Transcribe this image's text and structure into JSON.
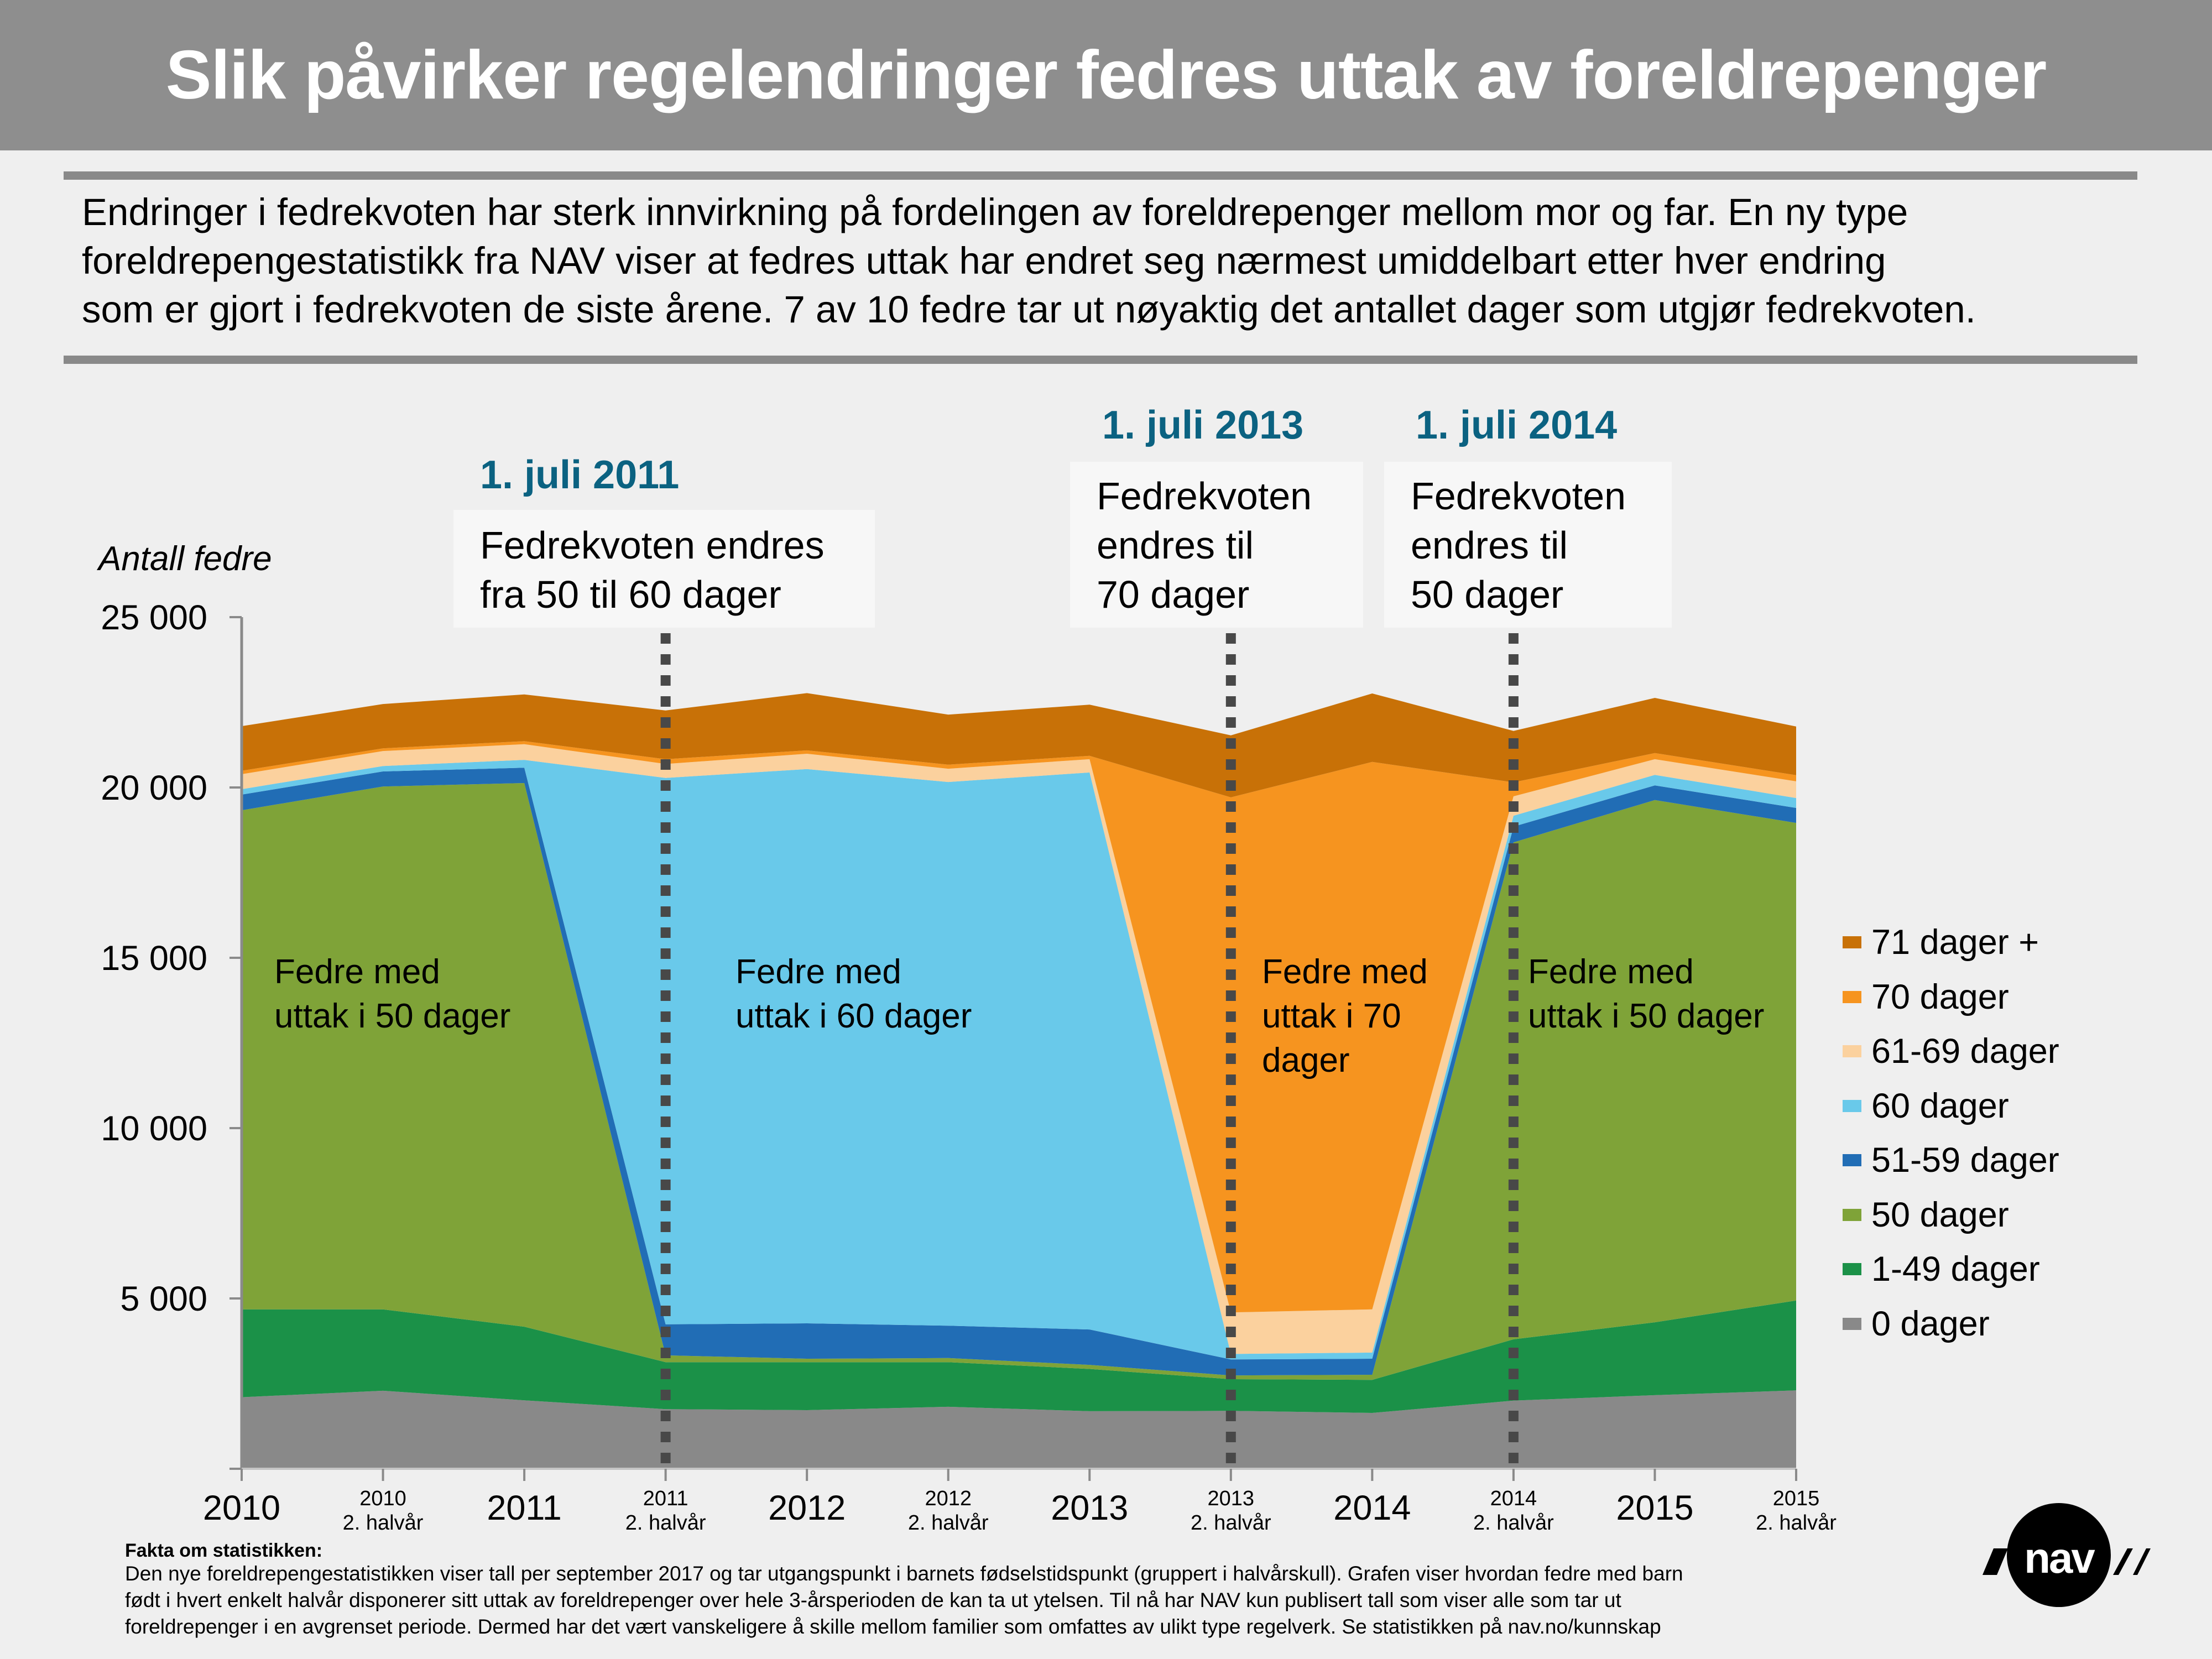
{
  "header": {
    "title": "Slik påvirker regelendringer fedres uttak av foreldrepenger"
  },
  "intro": {
    "lines": [
      "Endringer i fedrekvoten har sterk innvirkning på fordelingen av foreldrepenger mellom mor og far. En ny type",
      "foreldrepengestatistikk fra NAV viser at fedres uttak har endret seg nærmest umiddelbart etter hver endring",
      "som er gjort i fedrekvoten de siste årene. 7 av 10 fedre tar ut nøyaktig det antallet dager som utgjør fedrekvoten."
    ]
  },
  "annotations": [
    {
      "date": "1. juli 2011",
      "lines": [
        "Fedrekvoten endres",
        "fra 50 til 60 dager"
      ],
      "at_category": "2011 2. halvår"
    },
    {
      "date": "1. juli 2013",
      "lines": [
        "Fedrekvoten",
        "endres til",
        "70 dager"
      ],
      "at_category": "2013 2. halvår"
    },
    {
      "date": "1. juli 2014",
      "lines": [
        "Fedrekvoten",
        "endres til",
        "50 dager"
      ],
      "at_category": "2014 2. halvår"
    }
  ],
  "area_labels": [
    {
      "lines": [
        "Fedre med",
        "uttak i 50 dager"
      ]
    },
    {
      "lines": [
        "Fedre med",
        "uttak i 60 dager"
      ]
    },
    {
      "lines": [
        "Fedre med",
        "uttak i 70",
        "dager"
      ]
    },
    {
      "lines": [
        "Fedre med",
        "uttak i 50 dager"
      ]
    }
  ],
  "chart_data": {
    "type": "area",
    "stacked": true,
    "ylabel": "Antall fedre",
    "ylim": [
      0,
      25000
    ],
    "yticks": [
      5000,
      10000,
      15000,
      20000,
      25000
    ],
    "ytick_labels": [
      "5 000",
      "10 000",
      "15 000",
      "20 000",
      "25 000"
    ],
    "categories": [
      {
        "year": "2010",
        "half": ""
      },
      {
        "year": "2010",
        "half": "2. halvår"
      },
      {
        "year": "2011",
        "half": ""
      },
      {
        "year": "2011",
        "half": "2. halvår"
      },
      {
        "year": "2012",
        "half": ""
      },
      {
        "year": "2012",
        "half": "2. halvår"
      },
      {
        "year": "2013",
        "half": ""
      },
      {
        "year": "2013",
        "half": "2. halvår"
      },
      {
        "year": "2014",
        "half": ""
      },
      {
        "year": "2014",
        "half": "2. halvår"
      },
      {
        "year": "2015",
        "half": ""
      },
      {
        "year": "2015",
        "half": "2. halvår"
      }
    ],
    "series": [
      {
        "name": "0 dager",
        "color": "#898989",
        "values": [
          2100,
          2290,
          2010,
          1750,
          1720,
          1820,
          1690,
          1700,
          1640,
          2000,
          2160,
          2300
        ]
      },
      {
        "name": "1-49 dager",
        "color": "#1b9148",
        "values": [
          2580,
          2390,
          2160,
          1380,
          1410,
          1310,
          1240,
          930,
          970,
          1800,
          2140,
          2640
        ]
      },
      {
        "name": "50 dager",
        "color": "#7fa338",
        "values": [
          14650,
          15350,
          15960,
          200,
          100,
          120,
          120,
          110,
          150,
          14590,
          15330,
          14020
        ]
      },
      {
        "name": "51-59 dager",
        "color": "#216db5",
        "values": [
          460,
          440,
          450,
          910,
          1040,
          950,
          1040,
          470,
          470,
          460,
          430,
          440
        ]
      },
      {
        "name": "60 dager",
        "color": "#69c9ea",
        "values": [
          160,
          160,
          230,
          16040,
          16270,
          15960,
          16350,
          160,
          180,
          320,
          310,
          290
        ]
      },
      {
        "name": "61-69 dager",
        "color": "#fbd19e",
        "values": [
          440,
          440,
          460,
          410,
          450,
          390,
          390,
          1220,
          1270,
          570,
          460,
          490
        ]
      },
      {
        "name": "70 dager",
        "color": "#f6941f",
        "values": [
          100,
          80,
          90,
          140,
          100,
          120,
          100,
          15120,
          16070,
          410,
          180,
          180
        ]
      },
      {
        "name": "71 dager +",
        "color": "#c87107",
        "values": [
          1310,
          1300,
          1370,
          1430,
          1680,
          1470,
          1500,
          1820,
          2010,
          1510,
          1620,
          1430
        ]
      }
    ],
    "legend_position": "right",
    "grid": false
  },
  "footer": {
    "heading": "Fakta om statistikken:",
    "lines": [
      "Den nye foreldrepengestatistikken viser tall per september 2017 og tar utgangspunkt i barnets fødselstidspunkt (gruppert i halvårskull). Grafen viser hvordan fedre med barn",
      "født i hvert enkelt halvår disponerer sitt uttak av foreldrepenger over hele 3-årsperioden de kan ta ut ytelsen. Til nå har NAV kun publisert tall som viser alle som tar ut",
      "foreldrepenger i en avgrenset periode. Dermed har det vært vanskeligere å skille mellom familier som omfattes av ulikt type regelverk. Se statistikken på nav.no/kunnskap"
    ]
  },
  "logo": {
    "text": "nav"
  },
  "colors": {
    "title_bar": "#8e8e8e",
    "accent_date": "#0b6281",
    "background": "#efefef"
  }
}
